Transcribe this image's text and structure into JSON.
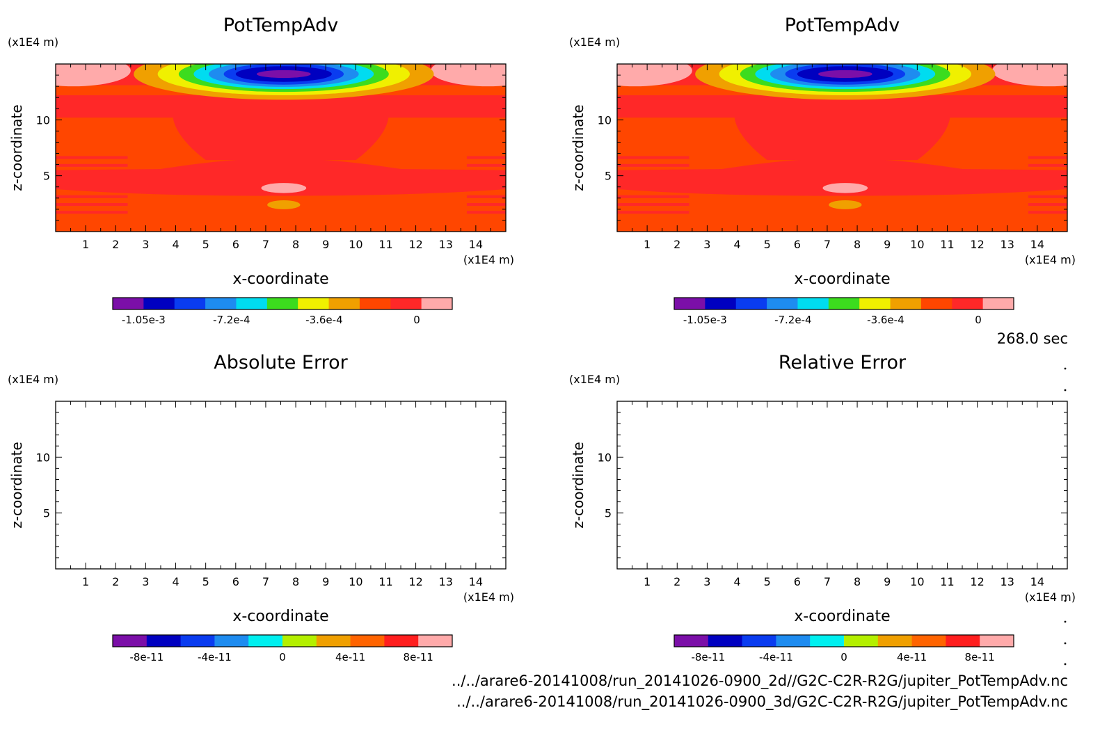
{
  "figure": {
    "time_label": "268.0 sec",
    "file_paths": [
      "../../arare6-20141008/run_20141026-0900_2d//G2C-C2R-R2G/jupiter_PotTempAdv.nc",
      "../../arare6-20141008/run_20141026-0900_3d/G2C-C2R-R2G/jupiter_PotTempAdv.nc"
    ]
  },
  "chart_data": [
    {
      "type": "heatmap",
      "title": "PotTempAdv",
      "xlabel": "x-coordinate",
      "ylabel": "z-coordinate",
      "x_unit": "(x1E4 m)",
      "y_unit": "(x1E4 m)",
      "xlim": [
        0,
        15
      ],
      "ylim": [
        0,
        15
      ],
      "x_ticks": [
        1,
        2,
        3,
        4,
        5,
        6,
        7,
        8,
        9,
        10,
        11,
        12,
        13,
        14
      ],
      "y_ticks": [
        5,
        10
      ],
      "fill": "contour",
      "colorbar": {
        "colors": [
          "#7b0fa8",
          "#0000c0",
          "#0a3cf0",
          "#1e8cf0",
          "#00dcf0",
          "#3cdc1e",
          "#f0f000",
          "#f0a000",
          "#ff4600",
          "#ff2828",
          "#ffaaaa"
        ],
        "tick_labels": [
          "-1.05e-3",
          "-7.2e-4",
          "-3.6e-4",
          "0"
        ]
      }
    },
    {
      "type": "heatmap",
      "title": "PotTempAdv",
      "xlabel": "x-coordinate",
      "ylabel": "z-coordinate",
      "x_unit": "(x1E4 m)",
      "y_unit": "(x1E4 m)",
      "xlim": [
        0,
        15
      ],
      "ylim": [
        0,
        15
      ],
      "x_ticks": [
        1,
        2,
        3,
        4,
        5,
        6,
        7,
        8,
        9,
        10,
        11,
        12,
        13,
        14
      ],
      "y_ticks": [
        5,
        10
      ],
      "fill": "contour",
      "colorbar": {
        "colors": [
          "#7b0fa8",
          "#0000c0",
          "#0a3cf0",
          "#1e8cf0",
          "#00dcf0",
          "#3cdc1e",
          "#f0f000",
          "#f0a000",
          "#ff4600",
          "#ff2828",
          "#ffaaaa"
        ],
        "tick_labels": [
          "-1.05e-3",
          "-7.2e-4",
          "-3.6e-4",
          "0"
        ]
      }
    },
    {
      "type": "heatmap",
      "title": "Absolute Error",
      "xlabel": "x-coordinate",
      "ylabel": "z-coordinate",
      "x_unit": "(x1E4 m)",
      "y_unit": "(x1E4 m)",
      "xlim": [
        0,
        15
      ],
      "ylim": [
        0,
        15
      ],
      "x_ticks": [
        1,
        2,
        3,
        4,
        5,
        6,
        7,
        8,
        9,
        10,
        11,
        12,
        13,
        14
      ],
      "y_ticks": [
        5,
        10
      ],
      "fill": "empty",
      "colorbar": {
        "colors": [
          "#7b0fa8",
          "#0000c0",
          "#0a3cf0",
          "#1e8cf0",
          "#00f0f0",
          "#b4f000",
          "#f0a000",
          "#ff6400",
          "#ff1e1e",
          "#ffaaaa"
        ],
        "tick_labels": [
          "-8e-11",
          "-4e-11",
          "0",
          "4e-11",
          "8e-11"
        ]
      }
    },
    {
      "type": "heatmap",
      "title": "Relative Error",
      "xlabel": "x-coordinate",
      "ylabel": "z-coordinate",
      "x_unit": "(x1E4 m)",
      "y_unit": "(x1E4 m)",
      "xlim": [
        0,
        15
      ],
      "ylim": [
        0,
        15
      ],
      "x_ticks": [
        1,
        2,
        3,
        4,
        5,
        6,
        7,
        8,
        9,
        10,
        11,
        12,
        13,
        14
      ],
      "y_ticks": [
        5,
        10
      ],
      "fill": "empty",
      "colorbar": {
        "colors": [
          "#7b0fa8",
          "#0000c0",
          "#0a3cf0",
          "#1e8cf0",
          "#00f0f0",
          "#b4f000",
          "#f0a000",
          "#ff6400",
          "#ff1e1e",
          "#ffaaaa"
        ],
        "tick_labels": [
          "-8e-11",
          "-4e-11",
          "0",
          "4e-11",
          "8e-11"
        ]
      }
    }
  ]
}
